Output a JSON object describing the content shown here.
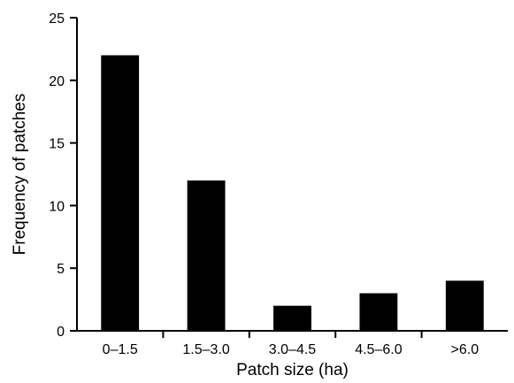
{
  "chart_data": {
    "type": "bar",
    "title": "",
    "xlabel": "Patch size (ha)",
    "ylabel": "Frequency of patches",
    "categories": [
      "0–1.5",
      "1.5–3.0",
      "3.0–4.5",
      "4.5–6.0",
      ">6.0"
    ],
    "values": [
      22,
      12,
      2,
      3,
      4
    ],
    "ylim": [
      0,
      25
    ],
    "yticks": [
      0,
      5,
      10,
      15,
      20,
      25
    ],
    "grid": false,
    "legend": "none",
    "bar_color": "#000000",
    "axis_color": "#000000"
  }
}
